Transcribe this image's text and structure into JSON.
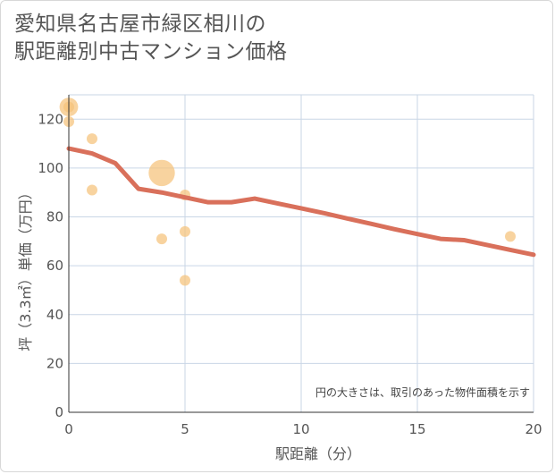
{
  "chart_title_line1": "愛知県名古屋市緑区相川の",
  "chart_title_line2": "駅距離別中古マンション価格",
  "chart_data": {
    "type": "scatter",
    "title": "愛知県名古屋市緑区相川の駅距離別中古マンション価格",
    "xlabel": "駅距離（分）",
    "ylabel": "坪（3.3㎡）単価（万円）",
    "xlim": [
      0,
      20
    ],
    "ylim": [
      0,
      130
    ],
    "xticks": [
      0,
      5,
      10,
      15,
      20
    ],
    "yticks": [
      0,
      20,
      40,
      60,
      80,
      100,
      120
    ],
    "grid": true,
    "annotation": "円の大きさは、取引のあった物件面積を示す",
    "bubble_color": "#f5c27a",
    "line_color": "#d9705b",
    "points": [
      {
        "x": 0,
        "y": 125,
        "size": 3
      },
      {
        "x": 0,
        "y": 125,
        "size": 1
      },
      {
        "x": 0,
        "y": 119,
        "size": 1
      },
      {
        "x": 1,
        "y": 112,
        "size": 1
      },
      {
        "x": 1,
        "y": 91,
        "size": 1
      },
      {
        "x": 4,
        "y": 98,
        "size": 6
      },
      {
        "x": 5,
        "y": 89,
        "size": 1
      },
      {
        "x": 4,
        "y": 71,
        "size": 1
      },
      {
        "x": 5,
        "y": 74,
        "size": 1
      },
      {
        "x": 5,
        "y": 54,
        "size": 1
      },
      {
        "x": 19,
        "y": 72,
        "size": 1
      }
    ],
    "trend": {
      "name": "trend",
      "x": [
        0,
        1,
        2,
        3,
        4,
        5,
        6,
        7,
        8,
        9,
        10,
        11,
        12,
        13,
        14,
        15,
        16,
        17,
        18,
        19,
        20
      ],
      "y": [
        108,
        106,
        102,
        91.5,
        90,
        88,
        86,
        86,
        87.5,
        85.5,
        83.5,
        81.5,
        79.3,
        77.2,
        75,
        73,
        71,
        70.5,
        68.5,
        66.5,
        64.5
      ]
    }
  }
}
